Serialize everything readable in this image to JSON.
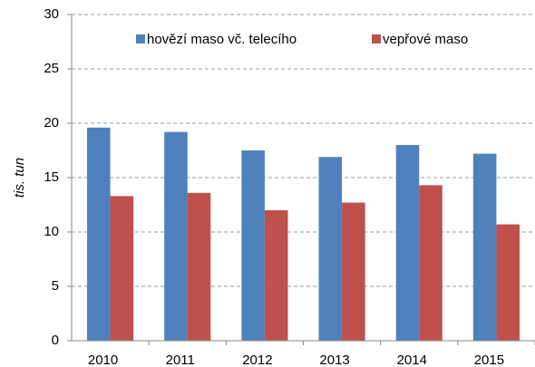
{
  "chart_data": {
    "type": "bar",
    "categories": [
      "2010",
      "2011",
      "2012",
      "2013",
      "2014",
      "2015"
    ],
    "series": [
      {
        "name": "hovězí maso vč. telecího",
        "color": "#4f81bd",
        "values": [
          19.6,
          19.2,
          17.5,
          16.9,
          18.0,
          17.2
        ]
      },
      {
        "name": "vepřové maso",
        "color": "#c0504d",
        "values": [
          13.3,
          13.6,
          12.0,
          12.7,
          14.3,
          10.7
        ]
      }
    ],
    "y_label": "tis. tun",
    "ylim": [
      0,
      30
    ],
    "yticks": [
      0,
      5,
      10,
      15,
      20,
      25,
      30
    ],
    "grid": true,
    "legend": "top"
  }
}
